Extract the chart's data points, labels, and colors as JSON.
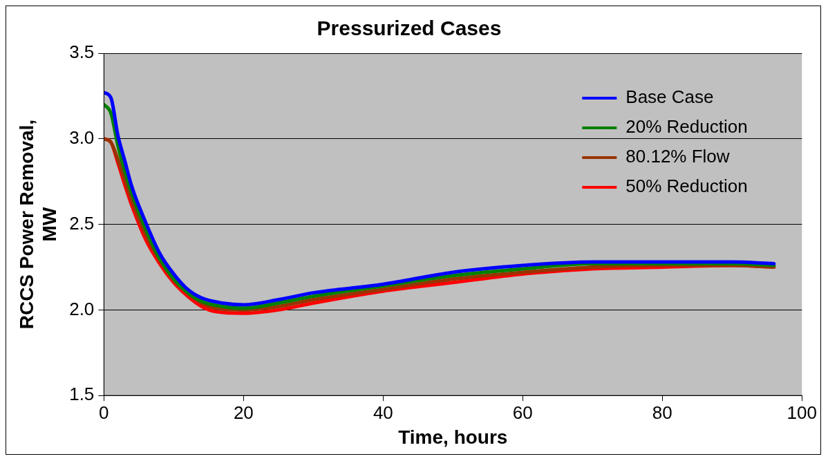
{
  "chart_data": {
    "type": "line",
    "title": "Pressurized Cases",
    "xlabel": "Time, hours",
    "ylabel": "RCCS Power Removal, MW",
    "xlim": [
      0,
      100
    ],
    "xticks": [
      0,
      20,
      40,
      60,
      80,
      100
    ],
    "ylim": [
      1.5,
      3.5
    ],
    "yticks": [
      {
        "value": 1.5,
        "label": "1.5"
      },
      {
        "value": 2,
        "label": "2.0"
      },
      {
        "value": 2.5,
        "label": "2.5"
      },
      {
        "value": 3,
        "label": "3.0"
      },
      {
        "value": 3.5,
        "label": "3.5"
      }
    ],
    "grid": "y",
    "legend": "top right",
    "marker": "none",
    "line_style": "solid",
    "series": [
      {
        "name": "Base Case",
        "color": "#0000ff",
        "x": [
          0,
          1,
          2,
          3,
          4,
          6,
          8,
          10,
          12,
          14,
          17,
          20,
          25,
          30,
          40,
          50,
          60,
          70,
          80,
          90,
          96
        ],
        "values": [
          3.27,
          3.24,
          3.02,
          2.87,
          2.72,
          2.51,
          2.33,
          2.21,
          2.12,
          2.07,
          2.04,
          2.03,
          2.06,
          2.1,
          2.15,
          2.22,
          2.26,
          2.28,
          2.28,
          2.28,
          2.27
        ]
      },
      {
        "name": "20% Reduction",
        "color": "#008000",
        "x": [
          0,
          1,
          2,
          3,
          4,
          6,
          8,
          10,
          12,
          14,
          17,
          20,
          25,
          30,
          40,
          50,
          60,
          70,
          80,
          90,
          96
        ],
        "values": [
          3.2,
          3.15,
          2.96,
          2.81,
          2.68,
          2.47,
          2.3,
          2.18,
          2.1,
          2.05,
          2.02,
          2.01,
          2.04,
          2.08,
          2.14,
          2.2,
          2.24,
          2.27,
          2.27,
          2.27,
          2.26
        ]
      },
      {
        "name": "80.12% Flow",
        "color": "#993300",
        "x": [
          0,
          1,
          2,
          3,
          4,
          6,
          8,
          10,
          12,
          14,
          16,
          20,
          25,
          30,
          40,
          50,
          60,
          70,
          80,
          90,
          96
        ],
        "values": [
          3,
          2.98,
          2.88,
          2.76,
          2.64,
          2.44,
          2.29,
          2.18,
          2.1,
          2.04,
          2.01,
          2,
          2.02,
          2.06,
          2.12,
          2.18,
          2.22,
          2.25,
          2.26,
          2.26,
          2.25
        ]
      },
      {
        "name": "50% Reduction",
        "color": "#ff0000",
        "x": [
          0,
          1,
          2,
          3,
          4,
          6,
          8,
          10,
          12,
          14,
          16,
          20,
          25,
          30,
          40,
          50,
          60,
          70,
          80,
          90,
          96
        ],
        "values": [
          3,
          2.98,
          2.86,
          2.73,
          2.61,
          2.41,
          2.27,
          2.16,
          2.08,
          2.02,
          1.99,
          1.98,
          2,
          2.04,
          2.11,
          2.16,
          2.21,
          2.24,
          2.25,
          2.26,
          2.25
        ]
      }
    ]
  }
}
